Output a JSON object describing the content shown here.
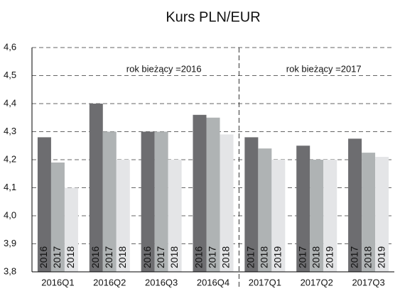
{
  "chart_data": {
    "type": "bar",
    "title": "Kurs PLN/EUR",
    "categories": [
      "2016Q1",
      "2016Q2",
      "2016Q3",
      "2016Q4",
      "2017Q1",
      "2017Q2",
      "2017Q3"
    ],
    "series": [
      {
        "color": "#6d6d70",
        "values": [
          4.28,
          4.4,
          4.3,
          4.36,
          4.28,
          4.25,
          4.275
        ]
      },
      {
        "color": "#afb3b4",
        "values": [
          4.19,
          4.3,
          4.3,
          4.35,
          4.24,
          4.2,
          4.225
        ]
      },
      {
        "color": "#e4e5e7",
        "values": [
          4.1,
          4.2,
          4.2,
          4.29,
          4.2,
          4.2,
          4.21
        ]
      }
    ],
    "bar_labels": [
      [
        "2016",
        "2017",
        "2018"
      ],
      [
        "2016",
        "2017",
        "2018"
      ],
      [
        "2016",
        "2017",
        "2018"
      ],
      [
        "2016",
        "2017",
        "2018"
      ],
      [
        "2017",
        "2018",
        "2019"
      ],
      [
        "2017",
        "2018",
        "2019"
      ],
      [
        "2017",
        "2018",
        "2019"
      ]
    ],
    "annotations": [
      "rok bieżący =2016",
      "rok bieżący =2017"
    ],
    "ylim": [
      3.8,
      4.6
    ],
    "yticks": [
      {
        "value": 3.8,
        "label": "3,8"
      },
      {
        "value": 3.9,
        "label": "3,9"
      },
      {
        "value": 4.0,
        "label": "4,0"
      },
      {
        "value": 4.1,
        "label": "4,1"
      },
      {
        "value": 4.2,
        "label": "4,2"
      },
      {
        "value": 4.3,
        "label": "4,3"
      },
      {
        "value": 4.4,
        "label": "4,4"
      },
      {
        "value": 4.5,
        "label": "4,5"
      },
      {
        "value": 4.6,
        "label": "4,6"
      }
    ],
    "grid": true
  }
}
